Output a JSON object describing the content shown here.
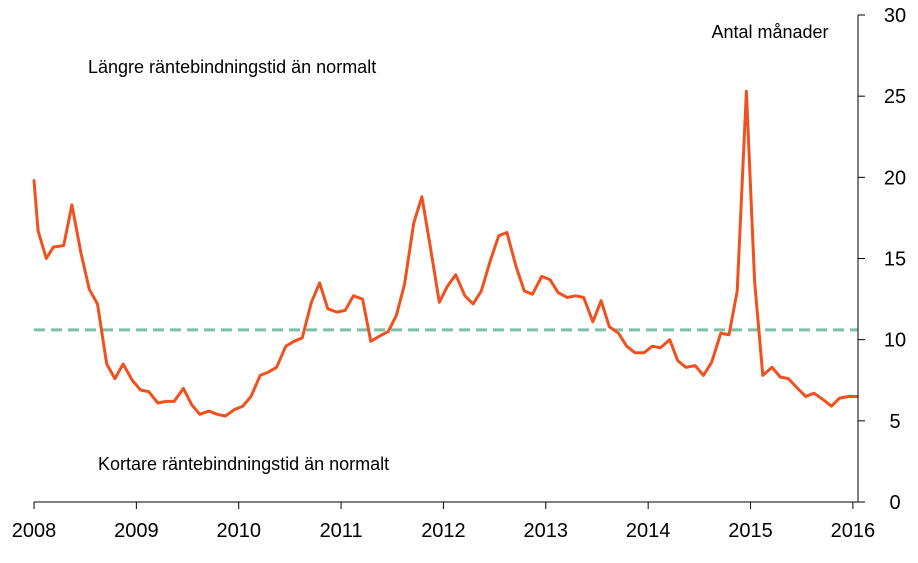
{
  "chart_data": {
    "type": "line",
    "title": "",
    "xlabel": "",
    "ylabel": "Antal månader",
    "x_ticks": [
      "2008",
      "2009",
      "2010",
      "2011",
      "2012",
      "2013",
      "2014",
      "2015",
      "2016"
    ],
    "xlim": [
      2008.0,
      2016.05
    ],
    "y_ticks": [
      "0",
      "5",
      "10",
      "15",
      "20",
      "25",
      "30"
    ],
    "ylim": [
      0,
      30
    ],
    "y_axis_side": "right",
    "grid": false,
    "annotations": {
      "upper": "Längre räntebindningstid än normalt",
      "lower": "Kortare räntebindningstid än normalt"
    },
    "reference_line": {
      "value": 10.6,
      "style": "dashed",
      "color": "#7fbfa8"
    },
    "series": [
      {
        "color": "#f0511e",
        "x": [
          2008.0,
          2008.04,
          2008.12,
          2008.19,
          2008.29,
          2008.37,
          2008.46,
          2008.54,
          2008.62,
          2008.71,
          2008.79,
          2008.87,
          2008.96,
          2009.04,
          2009.12,
          2009.21,
          2009.29,
          2009.37,
          2009.46,
          2009.54,
          2009.62,
          2009.71,
          2009.79,
          2009.87,
          2009.96,
          2010.04,
          2010.12,
          2010.21,
          2010.29,
          2010.37,
          2010.46,
          2010.54,
          2010.62,
          2010.71,
          2010.79,
          2010.87,
          2010.96,
          2011.04,
          2011.12,
          2011.21,
          2011.29,
          2011.37,
          2011.46,
          2011.54,
          2011.62,
          2011.71,
          2011.79,
          2011.87,
          2011.96,
          2012.04,
          2012.12,
          2012.21,
          2012.29,
          2012.37,
          2012.46,
          2012.54,
          2012.62,
          2012.71,
          2012.79,
          2012.87,
          2012.96,
          2013.04,
          2013.12,
          2013.21,
          2013.29,
          2013.37,
          2013.46,
          2013.54,
          2013.62,
          2013.71,
          2013.79,
          2013.87,
          2013.96,
          2014.04,
          2014.12,
          2014.21,
          2014.29,
          2014.37,
          2014.46,
          2014.54,
          2014.62,
          2014.71,
          2014.79,
          2014.87,
          2014.96,
          2015.04,
          2015.12,
          2015.21,
          2015.29,
          2015.37,
          2015.46,
          2015.54,
          2015.62,
          2015.71,
          2015.79,
          2015.87,
          2015.96,
          2016.04
        ],
        "y": [
          19.8,
          16.7,
          15.0,
          15.7,
          15.8,
          18.3,
          15.3,
          13.1,
          12.2,
          8.5,
          7.6,
          8.5,
          7.5,
          6.9,
          6.8,
          6.1,
          6.2,
          6.2,
          7.0,
          6.0,
          5.4,
          5.6,
          5.4,
          5.3,
          5.7,
          5.9,
          6.5,
          7.8,
          8.0,
          8.3,
          9.6,
          9.9,
          10.1,
          12.3,
          13.5,
          11.9,
          11.7,
          11.8,
          12.7,
          12.5,
          9.9,
          10.2,
          10.5,
          11.5,
          13.4,
          17.2,
          18.8,
          15.8,
          12.3,
          13.3,
          14.0,
          12.7,
          12.2,
          13.0,
          14.9,
          16.4,
          16.6,
          14.5,
          13.0,
          12.8,
          13.9,
          13.7,
          12.9,
          12.6,
          12.7,
          12.6,
          11.1,
          12.4,
          10.8,
          10.4,
          9.6,
          9.2,
          9.2,
          9.6,
          9.5,
          10.0,
          8.7,
          8.3,
          8.4,
          7.8,
          8.6,
          10.4,
          10.3,
          13.0,
          25.3,
          13.6,
          7.8,
          8.3,
          7.7,
          7.6,
          7.0,
          6.5,
          6.7,
          6.3,
          5.9,
          6.4,
          6.5,
          6.5
        ]
      }
    ]
  }
}
